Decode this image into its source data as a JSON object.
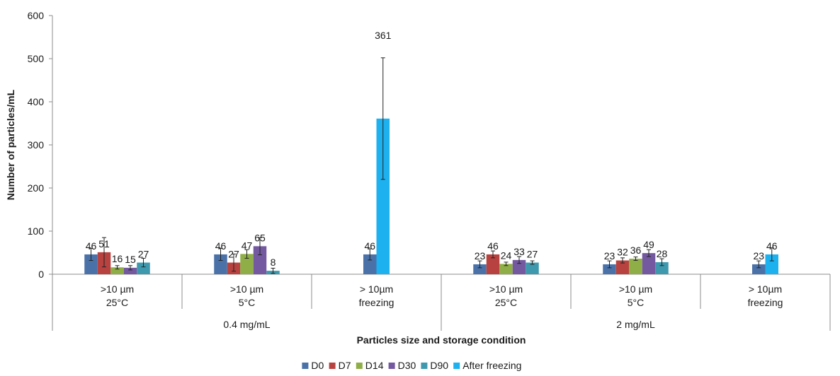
{
  "chart_data": {
    "type": "bar",
    "title": "",
    "xlabel": "Particles size and storage condition",
    "ylabel": "Number of particles/mL",
    "ylim": [
      0,
      600
    ],
    "yticks": [
      0,
      100,
      200,
      300,
      400,
      500,
      600
    ],
    "grid": false,
    "legend_position": "bottom",
    "categories": [
      {
        "line1": ">10 µm",
        "line2": "25°C",
        "group": "0.4 mg/mL"
      },
      {
        "line1": ">10 µm",
        "line2": "5°C",
        "group": "0.4 mg/mL"
      },
      {
        "line1": "> 10µm",
        "line2": "freezing",
        "group": "0.4 mg/mL"
      },
      {
        "line1": ">10 µm",
        "line2": "25°C",
        "group": "2 mg/mL"
      },
      {
        "line1": ">10 µm",
        "line2": "5°C",
        "group": "2 mg/mL"
      },
      {
        "line1": "> 10µm",
        "line2": "freezing",
        "group": "2 mg/mL"
      }
    ],
    "groups": [
      "0.4 mg/mL",
      "2 mg/mL"
    ],
    "series": [
      {
        "name": "D0",
        "color": "#4a72a8",
        "values": [
          46,
          46,
          46,
          23,
          23,
          23
        ],
        "errors": [
          14,
          14,
          13,
          8,
          8,
          8
        ]
      },
      {
        "name": "D7",
        "color": "#b8423f",
        "values": [
          51,
          27,
          null,
          46,
          32,
          null
        ],
        "errors": [
          34,
          20,
          null,
          8,
          6,
          null
        ]
      },
      {
        "name": "D14",
        "color": "#8fae48",
        "values": [
          16,
          47,
          null,
          24,
          36,
          null
        ],
        "errors": [
          4,
          10,
          null,
          4,
          4,
          null
        ]
      },
      {
        "name": "D30",
        "color": "#7459a0",
        "values": [
          15,
          65,
          null,
          33,
          49,
          null
        ],
        "errors": [
          5,
          20,
          null,
          8,
          8,
          null
        ]
      },
      {
        "name": "D90",
        "color": "#3e99ae",
        "values": [
          27,
          8,
          null,
          27,
          28,
          null
        ],
        "errors": [
          10,
          6,
          null,
          4,
          8,
          null
        ]
      },
      {
        "name": "After freezing",
        "color": "#1eb1ef",
        "values": [
          null,
          null,
          361,
          null,
          null,
          46
        ],
        "errors": [
          null,
          null,
          141,
          null,
          null,
          15
        ]
      }
    ]
  }
}
